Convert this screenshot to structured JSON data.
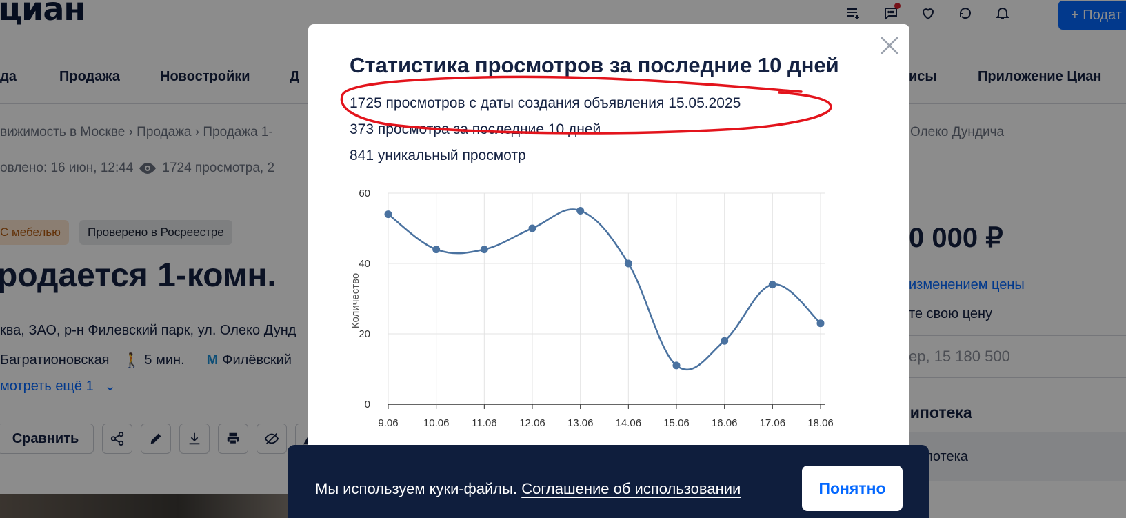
{
  "brand": {
    "logo": "циан"
  },
  "header": {
    "post_button": "+ Подат"
  },
  "nav": {
    "items": [
      "да",
      "Продажа",
      "Новостройки",
      "Д",
      "исы",
      "Приложение Циан"
    ]
  },
  "breadcrumbs": {
    "left": "вижимость в Москве  ›  Продажа  ›  Продажа 1-",
    "right": "Олеко Дундича"
  },
  "meta": {
    "updated": "овлено: 16 июн, 12:44",
    "views": "1724 просмотра, 2"
  },
  "badges": {
    "furniture": "С мебелью",
    "verified": "Проверено в Росреестре"
  },
  "listing": {
    "title": "родается 1-комн.",
    "address": "ква, ЗАО, р-н Филевский парк, ул. Олеко Дунд",
    "metro1": "Багратионовская",
    "walk": "5 мин.",
    "metro2": "Филёвский",
    "show_more": "мотреть ещё 1"
  },
  "actions": {
    "compare": "Сравнить"
  },
  "sidebar": {
    "price": "0 000 ₽",
    "price_change": "изменением цены",
    "offer": "те свою цену",
    "offer_input": "ер, 15 180 500",
    "mortgage_title": "я ипотека",
    "mortgage_item": "потека"
  },
  "modal": {
    "title": "Статистика просмотров за последние 10 дней",
    "stats": [
      "1725 просмотров с даты создания объявления 15.05.2025",
      "373 просмотра за последние 10 дней",
      "841 уникальный просмотр"
    ]
  },
  "chart_data": {
    "type": "line",
    "x": [
      "9.06",
      "10.06",
      "11.06",
      "12.06",
      "13.06",
      "14.06",
      "15.06",
      "16.06",
      "17.06",
      "18.06"
    ],
    "series": [
      {
        "values": [
          54,
          44,
          44,
          50,
          55,
          40,
          11,
          18,
          34,
          23
        ]
      }
    ],
    "ylabel": "Количество",
    "ylim": [
      0,
      60
    ],
    "yticks": [
      0,
      20,
      40,
      60
    ],
    "grid": true,
    "color": "#4a72a0"
  },
  "cookie": {
    "text": "Мы используем куки-файлы.",
    "link": "Соглашение об использовании",
    "button": "Понятно"
  },
  "colors": {
    "accent": "#0468ff",
    "annotation": "#e3141c",
    "cookie_bg": "#0f1e3d"
  }
}
